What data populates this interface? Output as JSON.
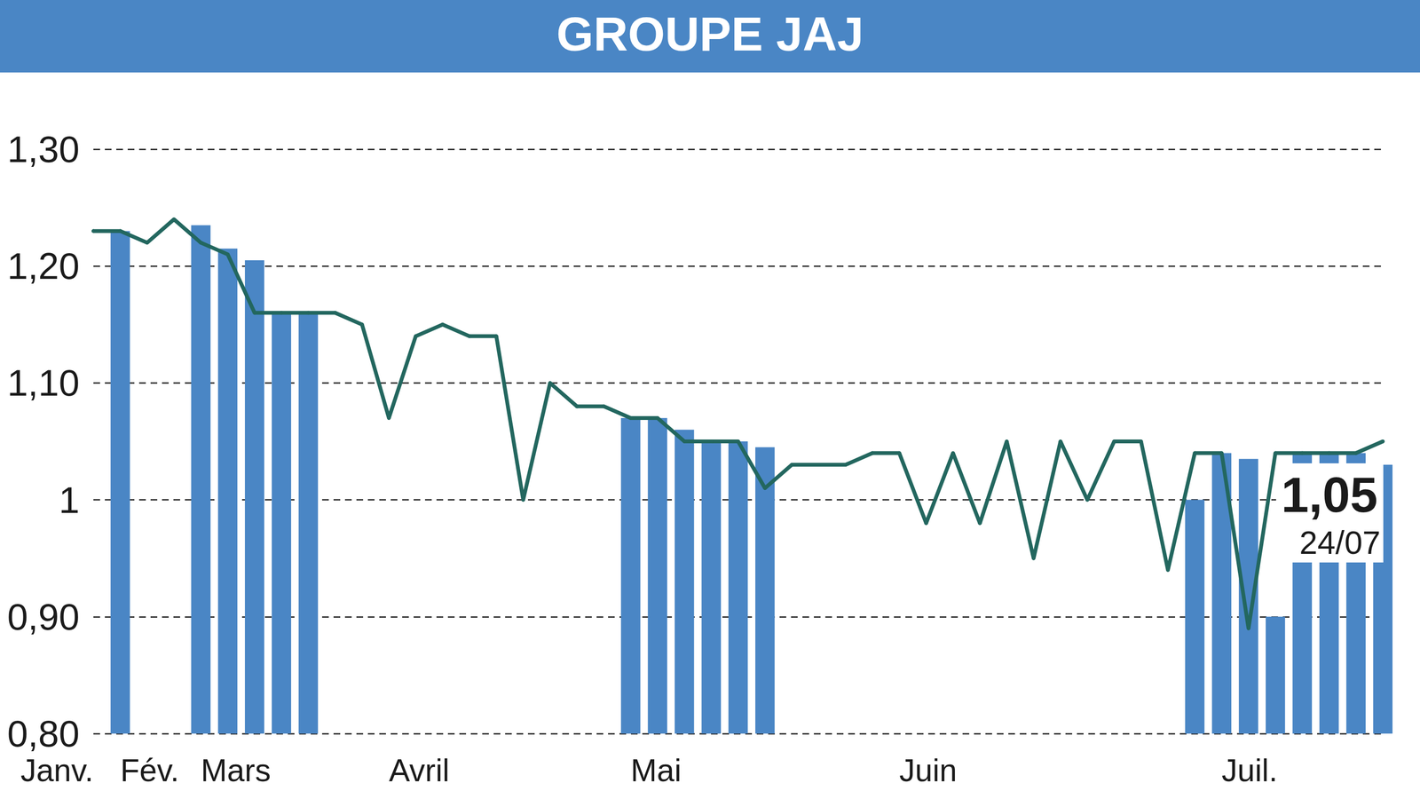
{
  "chart_data": {
    "type": "line",
    "title": "GROUPE JAJ",
    "categories": [
      "Janv.",
      "Fév.",
      null,
      null,
      "Mars",
      null,
      null,
      null,
      null,
      null,
      null,
      "Avril",
      null,
      null,
      null,
      null,
      null,
      null,
      null,
      null,
      "Mai",
      null,
      null,
      null,
      null,
      null,
      null,
      null,
      null,
      null,
      "Juin",
      null,
      null,
      null,
      null,
      null,
      null,
      null,
      null,
      null,
      null,
      null,
      "Juil.",
      null,
      null,
      null,
      null,
      null,
      null
    ],
    "series": [
      {
        "type": "bar",
        "color": "#4a86c5",
        "values": [
          null,
          1.23,
          null,
          null,
          1.235,
          1.215,
          1.205,
          1.16,
          1.16,
          null,
          null,
          null,
          null,
          null,
          null,
          null,
          null,
          null,
          null,
          null,
          1.07,
          1.07,
          1.06,
          1.05,
          1.05,
          1.045,
          null,
          null,
          null,
          null,
          null,
          null,
          null,
          null,
          null,
          null,
          null,
          null,
          null,
          null,
          null,
          1.0,
          1.04,
          1.035,
          0.9,
          1.04,
          1.04,
          1.04,
          1.03
        ]
      },
      {
        "type": "line",
        "color": "#23675f",
        "marker": "circle",
        "values": [
          1.23,
          1.23,
          1.22,
          1.24,
          1.22,
          1.21,
          1.16,
          1.16,
          1.16,
          1.16,
          1.15,
          1.07,
          1.14,
          1.15,
          1.14,
          1.14,
          1.0,
          1.1,
          1.08,
          1.08,
          1.07,
          1.07,
          1.05,
          1.05,
          1.05,
          1.01,
          1.03,
          1.03,
          1.03,
          1.04,
          1.04,
          0.98,
          1.04,
          0.98,
          1.05,
          0.95,
          1.05,
          1.0,
          1.05,
          1.05,
          0.94,
          1.04,
          1.04,
          0.89,
          1.04,
          1.04,
          1.04,
          1.04,
          1.05
        ]
      }
    ],
    "ylim": [
      0.8,
      1.3
    ],
    "yticks": [
      {
        "value": 0.8,
        "label": "0,80"
      },
      {
        "value": 0.9,
        "label": "0,90"
      },
      1,
      {
        "value": 1.1,
        "label": "1,10"
      },
      {
        "value": 1.2,
        "label": "1,20"
      },
      {
        "value": 1.3,
        "label": "1,30"
      }
    ],
    "grid": true,
    "annotation": {
      "text": "1,05",
      "date": "24/07"
    }
  }
}
